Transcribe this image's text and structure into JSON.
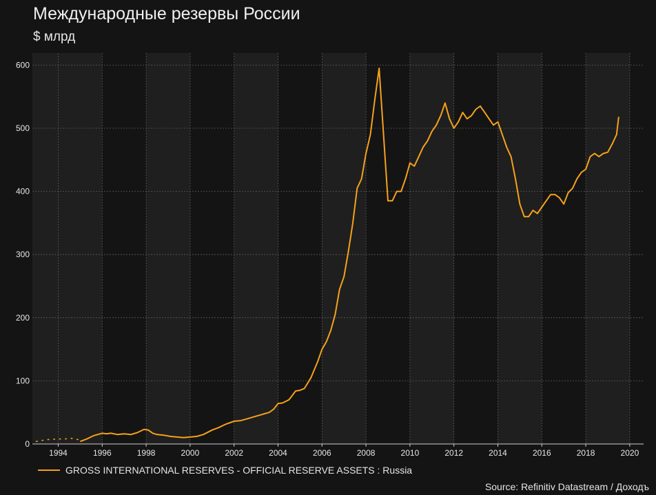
{
  "title": "Международные резервы России",
  "subtitle": "$ млрд",
  "legend_label": "GROSS INTERNATIONAL RESERVES - OFFICIAL RESERVE ASSETS : Russia",
  "source": "Source: Refinitiv Datastream / Доходъ",
  "colors": {
    "background": "#141414",
    "band": "#1f1f1f",
    "grid": "#5a5a5a",
    "series": "#f7a21b"
  },
  "chart_data": {
    "type": "line",
    "title": "Международные резервы России",
    "ylabel": "$ млрд",
    "xlim": [
      1992.9,
      2020.5
    ],
    "ylim": [
      0,
      600
    ],
    "x_ticks": [
      "1994",
      "1996",
      "1998",
      "2000",
      "2002",
      "2004",
      "2006",
      "2008",
      "2010",
      "2012",
      "2014",
      "2016",
      "2018",
      "2020"
    ],
    "y_ticks": [
      "0",
      "100",
      "200",
      "300",
      "400",
      "500",
      "600"
    ],
    "grid": true,
    "legend_position": "bottom-left",
    "series": [
      {
        "name": "GROSS INTERNATIONAL RESERVES - OFFICIAL RESERVE ASSETS : Russia",
        "style": "dotted",
        "x": [
          1993.0,
          1993.5,
          1994.0,
          1994.3,
          1994.6,
          1994.9
        ],
        "y": [
          4,
          7,
          8,
          8,
          9,
          7
        ]
      },
      {
        "name": "GROSS INTERNATIONAL RESERVES - OFFICIAL RESERVE ASSETS : Russia",
        "style": "solid",
        "x": [
          1995.0,
          1995.3,
          1995.6,
          1996.0,
          1996.2,
          1996.4,
          1996.7,
          1997.0,
          1997.3,
          1997.6,
          1997.9,
          1998.1,
          1998.3,
          1998.5,
          1998.8,
          1999.1,
          1999.4,
          1999.7,
          2000.0,
          2000.3,
          2000.6,
          2001.0,
          2001.3,
          2001.6,
          2002.0,
          2002.3,
          2002.6,
          2003.0,
          2003.3,
          2003.6,
          2003.8,
          2004.0,
          2004.2,
          2004.5,
          2004.8,
          2005.0,
          2005.2,
          2005.5,
          2005.8,
          2006.0,
          2006.2,
          2006.4,
          2006.6,
          2006.8,
          2007.0,
          2007.2,
          2007.4,
          2007.6,
          2007.8,
          2008.0,
          2008.2,
          2008.4,
          2008.6,
          2008.8,
          2009.0,
          2009.2,
          2009.4,
          2009.6,
          2009.8,
          2010.0,
          2010.2,
          2010.4,
          2010.6,
          2010.8,
          2011.0,
          2011.2,
          2011.4,
          2011.6,
          2011.8,
          2012.0,
          2012.2,
          2012.4,
          2012.6,
          2012.8,
          2013.0,
          2013.2,
          2013.4,
          2013.6,
          2013.8,
          2014.0,
          2014.2,
          2014.4,
          2014.6,
          2014.8,
          2015.0,
          2015.2,
          2015.4,
          2015.6,
          2015.8,
          2016.0,
          2016.2,
          2016.4,
          2016.6,
          2016.8,
          2017.0,
          2017.2,
          2017.4,
          2017.6,
          2017.8,
          2018.0,
          2018.2,
          2018.4,
          2018.6,
          2018.8,
          2019.0,
          2019.2,
          2019.4,
          2019.5
        ],
        "y": [
          4,
          8,
          13,
          17,
          16,
          17,
          15,
          16,
          15,
          18,
          23,
          22,
          17,
          15,
          14,
          12,
          11,
          10,
          11,
          12,
          15,
          22,
          26,
          31,
          36,
          37,
          40,
          44,
          47,
          50,
          55,
          64,
          65,
          70,
          84,
          85,
          88,
          105,
          130,
          150,
          162,
          180,
          205,
          245,
          265,
          305,
          350,
          405,
          420,
          460,
          490,
          545,
          595,
          490,
          385,
          385,
          400,
          400,
          420,
          445,
          440,
          455,
          470,
          480,
          495,
          505,
          520,
          540,
          515,
          500,
          510,
          525,
          515,
          520,
          530,
          535,
          525,
          515,
          505,
          510,
          490,
          470,
          455,
          420,
          380,
          360,
          360,
          370,
          365,
          375,
          385,
          395,
          395,
          390,
          380,
          398,
          405,
          420,
          430,
          435,
          455,
          460,
          455,
          460,
          462,
          475,
          490,
          518
        ]
      }
    ]
  }
}
